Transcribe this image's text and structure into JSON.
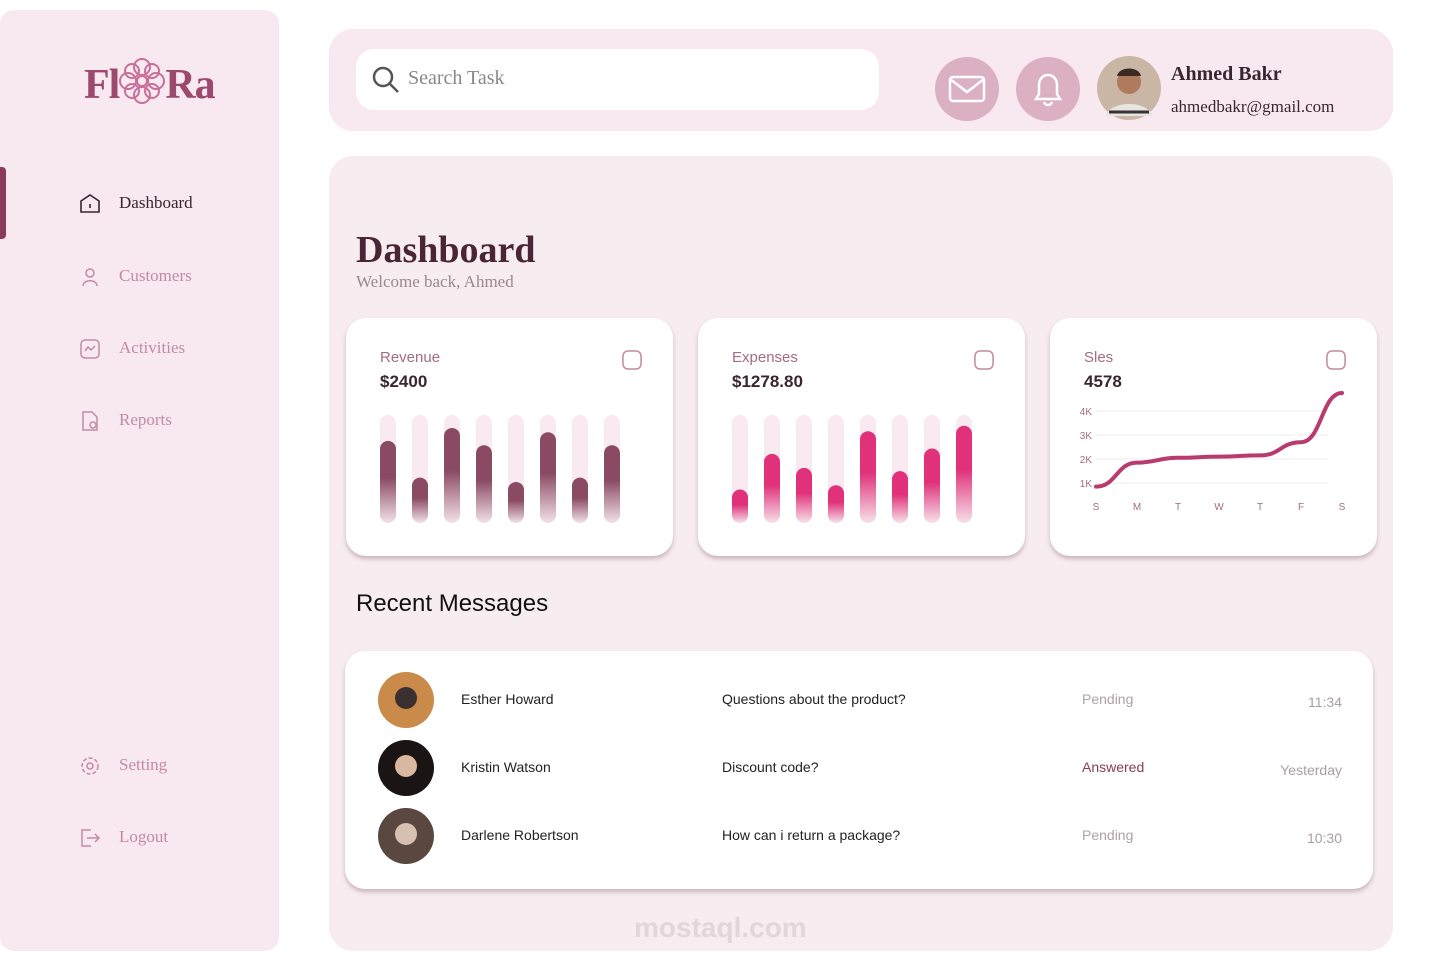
{
  "sidebar": {
    "logo": [
      "Fl",
      "Ra"
    ],
    "nav": [
      "Dashboard",
      "Customers",
      "Activities",
      "Reports"
    ],
    "bottom_nav": [
      "Setting",
      "Logout"
    ]
  },
  "header": {
    "search_placeholder": "Search Task",
    "user": {
      "name": "Ahmed Bakr",
      "email": "ahmedbakr@gmail.com"
    }
  },
  "main": {
    "title": "Dashboard",
    "subtitle": "Welcome back, Ahmed",
    "cards": [
      {
        "title": "Revenue",
        "value": "$2400",
        "chart": {
          "type": "bar",
          "color": "#8a4a63",
          "ylim": [
            0,
            100
          ],
          "values": [
            76,
            42,
            88,
            72,
            38,
            84,
            42,
            72
          ]
        }
      },
      {
        "title": "Expenses",
        "value": "$1278.80",
        "chart": {
          "type": "bar",
          "color": "#e0317a",
          "ylim": [
            0,
            100
          ],
          "values": [
            31,
            64,
            51,
            35,
            85,
            48,
            69,
            90
          ]
        }
      },
      {
        "title": "Sles",
        "value": "4578",
        "chart": {
          "type": "line",
          "color": "#b93a6e",
          "categories": [
            "S",
            "M",
            "T",
            "W",
            "T",
            "F",
            "S"
          ],
          "values": [
            850,
            1850,
            2050,
            2100,
            2150,
            2700,
            4750
          ],
          "ylim": [
            1000,
            4000
          ],
          "yticks": [
            {
              "value": 1000,
              "label": "1K"
            },
            {
              "value": 2000,
              "label": "2K"
            },
            {
              "value": 3000,
              "label": "3K"
            },
            {
              "value": 4000,
              "label": "4K"
            }
          ],
          "grid": true
        }
      }
    ],
    "messages": {
      "title": "Recent Messages",
      "rows": [
        [
          "Esther Howard",
          "Questions about the product?",
          "Pending",
          "11:34"
        ],
        [
          "Kristin Watson",
          "Discount code?",
          "Answered",
          "Yesterday"
        ],
        [
          "Darlene Robertson",
          "How can i return a package?",
          "Pending",
          "10:30"
        ]
      ]
    },
    "watermark": "mostaql.com"
  }
}
